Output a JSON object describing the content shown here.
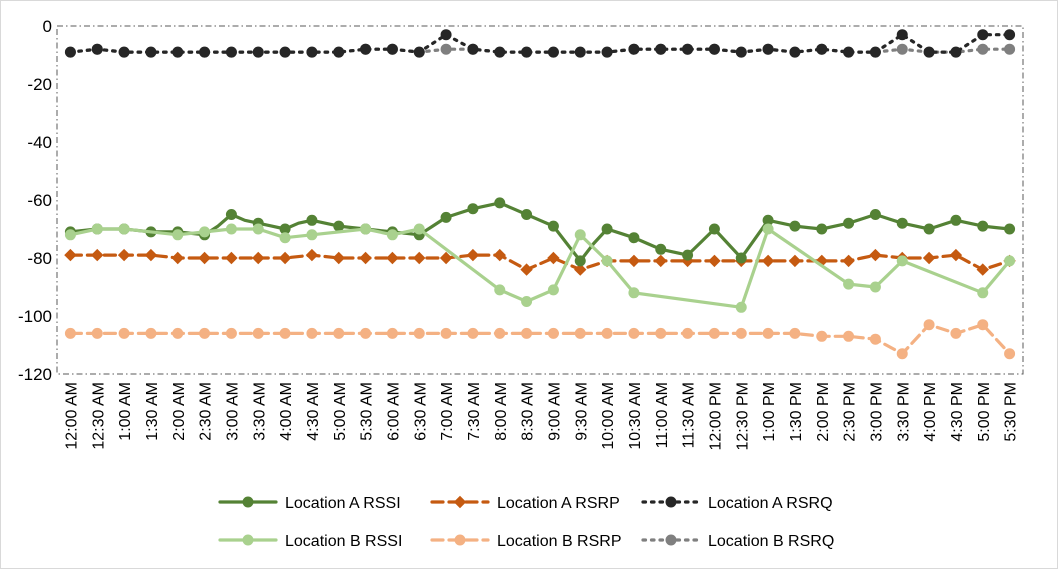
{
  "chart_data": {
    "type": "line",
    "title": "",
    "xlabel": "",
    "ylabel": "",
    "ylim": [
      -120,
      0
    ],
    "yticks": [
      0,
      -20,
      -40,
      -60,
      -80,
      -100,
      -120
    ],
    "grid": false,
    "legend_position": "bottom",
    "categories": [
      "12:00 AM",
      "12:30 AM",
      "1:00 AM",
      "1:30 AM",
      "2:00 AM",
      "2:30 AM",
      "3:00 AM",
      "3:30 AM",
      "4:00 AM",
      "4:30 AM",
      "5:00 AM",
      "5:30 AM",
      "6:00 AM",
      "6:30 AM",
      "7:00 AM",
      "7:30 AM",
      "8:00 AM",
      "8:30 AM",
      "9:00 AM",
      "9:30 AM",
      "10:00 AM",
      "10:30 AM",
      "11:00 AM",
      "11:30 AM",
      "12:00 PM",
      "12:30 PM",
      "1:00 PM",
      "1:30 PM",
      "2:00 PM",
      "2:30 PM",
      "3:00 PM",
      "3:30 PM",
      "4:00 PM",
      "4:30 PM",
      "5:00 PM",
      "5:30 PM"
    ],
    "series": [
      {
        "name": "Location A RSSI",
        "color": "#548235",
        "dash": "solid",
        "marker": "circle",
        "x": [
          0,
          1,
          2,
          3,
          4,
          5,
          5.5,
          6,
          6.5,
          7,
          7.5,
          8,
          8.5,
          9,
          9.5,
          10,
          10.5,
          11,
          11.5,
          12,
          12.5,
          13,
          13.5,
          14,
          14.5,
          15,
          15.5,
          16,
          16.5,
          17,
          17.5,
          18,
          18.5,
          19,
          19.5,
          20,
          20.5,
          21,
          21.5,
          22,
          22.5,
          23,
          23.5,
          24,
          24.5,
          25,
          25.5,
          26,
          26.5,
          27,
          27.5,
          28,
          28.5,
          29,
          29.5,
          30,
          30.5,
          31,
          31.5,
          32,
          32.5,
          33,
          33.5,
          34,
          34.5,
          35
        ],
        "values": [
          -71,
          -70,
          -70,
          -71,
          -71,
          -72,
          -69,
          -65,
          -67,
          -68,
          -69,
          -70,
          -68,
          -67,
          -68,
          -69,
          -69.5,
          -70,
          -70.5,
          -71,
          -71.5,
          -72,
          -69,
          -66,
          -64.5,
          -63,
          -62,
          -61,
          -63,
          -65,
          -67,
          -69,
          -75,
          -81,
          -75,
          -70,
          -71.5,
          -73,
          -75,
          -77,
          -78,
          -79,
          -74.5,
          -70,
          -75,
          -80,
          -73.5,
          -67,
          -68,
          -69,
          -69.5,
          -70,
          -69,
          -68,
          -66.5,
          -65,
          -66.5,
          -68,
          -69,
          -70,
          -68.5,
          -67,
          -68,
          -69,
          -69.5,
          -70
        ]
      },
      {
        "name": "Location A RSRP",
        "color": "#c55a11",
        "dash": "dash",
        "marker": "diamond",
        "x": [
          0,
          1,
          2,
          3,
          4,
          5,
          6,
          7,
          8,
          9,
          10,
          11,
          12,
          13,
          14,
          15,
          16,
          16.5,
          17,
          17.5,
          18,
          18.5,
          19,
          19.5,
          20,
          20.5,
          21,
          21.5,
          22,
          22.5,
          23,
          23.5,
          24,
          24.5,
          25,
          25.5,
          26,
          26.5,
          27,
          27.5,
          28,
          28.5,
          29,
          29.5,
          30,
          30.5,
          31,
          31.5,
          32,
          32.5,
          33,
          33.5,
          34,
          34.5,
          35
        ],
        "values": [
          -79,
          -79,
          -79,
          -79,
          -80,
          -80,
          -80,
          -80,
          -80,
          -79,
          -80,
          -80,
          -80,
          -80,
          -80,
          -79,
          -79,
          -81.5,
          -84,
          -82,
          -80,
          -82,
          -84,
          -82.5,
          -81,
          -81,
          -81,
          -81,
          -81,
          -81,
          -81,
          -81,
          -81,
          -81,
          -81,
          -81,
          -81,
          -81,
          -81,
          -81,
          -81,
          -81,
          -81,
          -80,
          -79,
          -79.5,
          -80,
          -80,
          -80,
          -79.5,
          -79,
          -81.5,
          -84,
          -82.5,
          -81
        ]
      },
      {
        "name": "Location A RSRQ",
        "color": "#262626",
        "dash": "dot",
        "marker": "circle",
        "x": [
          0,
          1,
          2,
          3,
          4,
          5,
          6,
          7,
          8,
          9,
          10,
          11,
          12,
          13,
          13.5,
          14,
          14.5,
          15,
          16,
          17,
          18,
          19,
          20,
          21,
          22,
          23,
          24,
          25,
          26,
          27,
          28,
          29,
          30,
          31,
          32,
          33,
          34,
          35
        ],
        "values": [
          -9,
          -8,
          -9,
          -9,
          -9,
          -9,
          -9,
          -9,
          -9,
          -9,
          -9,
          -8,
          -8,
          -9,
          -6,
          -3,
          -5.5,
          -8,
          -9,
          -9,
          -9,
          -9,
          -9,
          -8,
          -8,
          -8,
          -8,
          -9,
          -8,
          -9,
          -8,
          -9,
          -9,
          -3,
          -9,
          -9,
          -3,
          -3
        ]
      },
      {
        "name": "Location B RSSI",
        "color": "#a9d18e",
        "dash": "solid",
        "marker": "circle",
        "x": [
          0,
          1,
          2,
          4,
          5,
          6,
          7,
          8,
          9,
          11,
          12,
          13,
          16,
          17,
          18,
          19,
          20,
          21,
          25,
          26,
          29,
          30,
          31,
          34,
          35
        ],
        "values": [
          -72,
          -70,
          -70,
          -72,
          -71,
          -70,
          -70,
          -73,
          -72,
          -70,
          -72,
          -70,
          -91,
          -95,
          -91,
          -72,
          -81,
          -92,
          -97,
          -70,
          -89,
          -90,
          -81,
          -92,
          -81
        ]
      },
      {
        "name": "Location B RSRP",
        "color": "#f4b183",
        "dash": "dash",
        "marker": "circle",
        "x": [
          0,
          1,
          2,
          3,
          4,
          5,
          6,
          7,
          8,
          9,
          10,
          11,
          12,
          13,
          14,
          15,
          16,
          17,
          18,
          19,
          20,
          21,
          22,
          23,
          24,
          25,
          26,
          27,
          28,
          29,
          30,
          31,
          32,
          33,
          34,
          35
        ],
        "values": [
          -106,
          -106,
          -106,
          -106,
          -106,
          -106,
          -106,
          -106,
          -106,
          -106,
          -106,
          -106,
          -106,
          -106,
          -106,
          -106,
          -106,
          -106,
          -106,
          -106,
          -106,
          -106,
          -106,
          -106,
          -106,
          -106,
          -106,
          -106,
          -107,
          -107,
          -108,
          -113,
          -103,
          -106,
          -103,
          -113
        ]
      },
      {
        "name": "Location B RSRQ",
        "color": "#7f7f7f",
        "dash": "dot",
        "marker": "circle",
        "x": [
          0,
          1,
          2,
          3,
          4,
          5,
          6,
          7,
          8,
          9,
          10,
          11,
          12,
          13,
          14,
          15,
          16,
          17,
          18,
          19,
          20,
          21,
          22,
          23,
          24,
          25,
          26,
          27,
          28,
          29,
          30,
          31,
          32,
          33,
          34,
          35
        ],
        "values": [
          -9,
          -8,
          -9,
          -9,
          -9,
          -9,
          -9,
          -9,
          -9,
          -9,
          -9,
          -8,
          -8,
          -9,
          -8,
          -8,
          -9,
          -9,
          -9,
          -9,
          -9,
          -8,
          -8,
          -8,
          -8,
          -9,
          -8,
          -9,
          -8,
          -9,
          -9,
          -8,
          -9,
          -9,
          -8,
          -8
        ]
      }
    ]
  }
}
